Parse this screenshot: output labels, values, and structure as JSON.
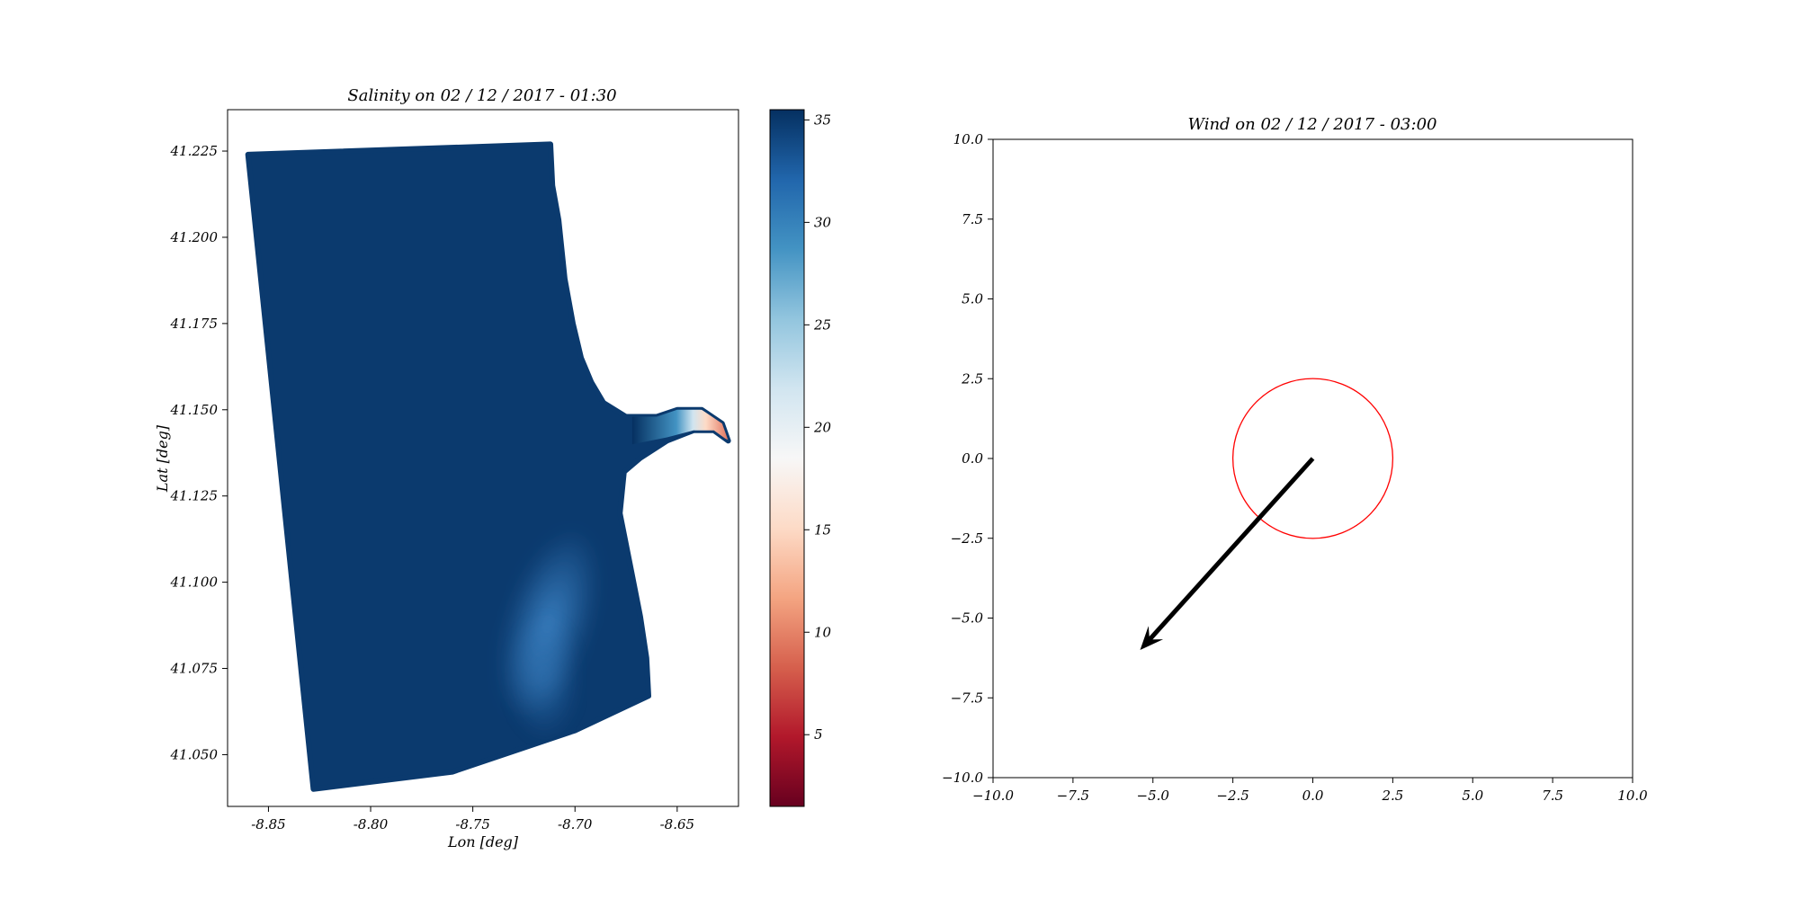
{
  "chart_data": [
    {
      "type": "scatter",
      "title": "Salinity on 02 / 12 / 2017 - 01:30",
      "xlabel": "Lon [deg]",
      "ylabel": "Lat [deg]",
      "xlim": [
        -8.87,
        -8.62
      ],
      "ylim": [
        41.035,
        41.237
      ],
      "x_ticks": [
        "-8.85",
        "-8.80",
        "-8.75",
        "-8.70",
        "-8.65"
      ],
      "x_tick_values": [
        -8.85,
        -8.8,
        -8.75,
        -8.7,
        -8.65
      ],
      "y_ticks": [
        "41.050",
        "41.075",
        "41.100",
        "41.125",
        "41.150",
        "41.175",
        "41.200",
        "41.225"
      ],
      "y_tick_values": [
        41.05,
        41.075,
        41.1,
        41.125,
        41.15,
        41.175,
        41.2,
        41.225
      ],
      "grid": false,
      "colormap": "RdBu",
      "colorbar": {
        "range": [
          1.5,
          35.5
        ],
        "ticks": [
          "5",
          "10",
          "15",
          "20",
          "25",
          "30",
          "35"
        ],
        "tick_values": [
          5,
          10,
          15,
          20,
          25,
          30,
          35
        ],
        "colors": [
          "#67001f",
          "#b2182b",
          "#d6604d",
          "#f4a582",
          "#fddbc7",
          "#f7f7f7",
          "#d1e5f0",
          "#92c5de",
          "#4393c3",
          "#2166ac",
          "#053061"
        ]
      },
      "domain_outline": [
        [
          -8.86,
          41.224
        ],
        [
          -8.712,
          41.227
        ],
        [
          -8.711,
          41.215
        ],
        [
          -8.708,
          41.205
        ],
        [
          -8.705,
          41.188
        ],
        [
          -8.701,
          41.175
        ],
        [
          -8.697,
          41.165
        ],
        [
          -8.692,
          41.158
        ],
        [
          -8.686,
          41.152
        ],
        [
          -8.675,
          41.148
        ],
        [
          -8.66,
          41.148
        ],
        [
          -8.65,
          41.15
        ],
        [
          -8.638,
          41.15
        ],
        [
          -8.628,
          41.146
        ],
        [
          -8.625,
          41.141
        ],
        [
          -8.632,
          41.144
        ],
        [
          -8.642,
          41.144
        ],
        [
          -8.655,
          41.141
        ],
        [
          -8.668,
          41.136
        ],
        [
          -8.676,
          41.132
        ],
        [
          -8.678,
          41.12
        ],
        [
          -8.673,
          41.105
        ],
        [
          -8.668,
          41.09
        ],
        [
          -8.665,
          41.078
        ],
        [
          -8.664,
          41.067
        ],
        [
          -8.7,
          41.057
        ],
        [
          -8.76,
          41.045
        ],
        [
          -8.828,
          41.04
        ]
      ],
      "regions": [
        {
          "name": "open-sea",
          "salinity": 35
        },
        {
          "name": "plume",
          "lon": -8.713,
          "lat": 41.088,
          "salinity": 30
        },
        {
          "name": "river-channel",
          "lon": -8.635,
          "lat": 41.146,
          "salinity": 10
        }
      ],
      "colors": {
        "sea": "#0b3a6e",
        "plume": "#3b82c4",
        "river": "#e06c55"
      }
    },
    {
      "type": "quiver",
      "title": "Wind on 02 / 12 / 2017 - 03:00",
      "xlim": [
        -10.0,
        10.0
      ],
      "ylim": [
        -10.0,
        10.0
      ],
      "x_ticks": [
        "−10.0",
        "−7.5",
        "−5.0",
        "−2.5",
        "0.0",
        "2.5",
        "5.0",
        "7.5",
        "10.0"
      ],
      "x_tick_values": [
        -10.0,
        -7.5,
        -5.0,
        -2.5,
        0.0,
        2.5,
        5.0,
        7.5,
        10.0
      ],
      "y_ticks": [
        "−10.0",
        "−7.5",
        "−5.0",
        "−2.5",
        "0.0",
        "2.5",
        "5.0",
        "7.5",
        "10.0"
      ],
      "y_tick_values": [
        -10.0,
        -7.5,
        -5.0,
        -2.5,
        0.0,
        2.5,
        5.0,
        7.5,
        10.0
      ],
      "grid": false,
      "arrow": {
        "x0": 0,
        "y0": 0,
        "u": -5.4,
        "v": -6.0,
        "color": "#000000"
      },
      "circle": {
        "cx": 0,
        "cy": 0,
        "r": 2.5,
        "color": "#ff0000"
      }
    }
  ]
}
